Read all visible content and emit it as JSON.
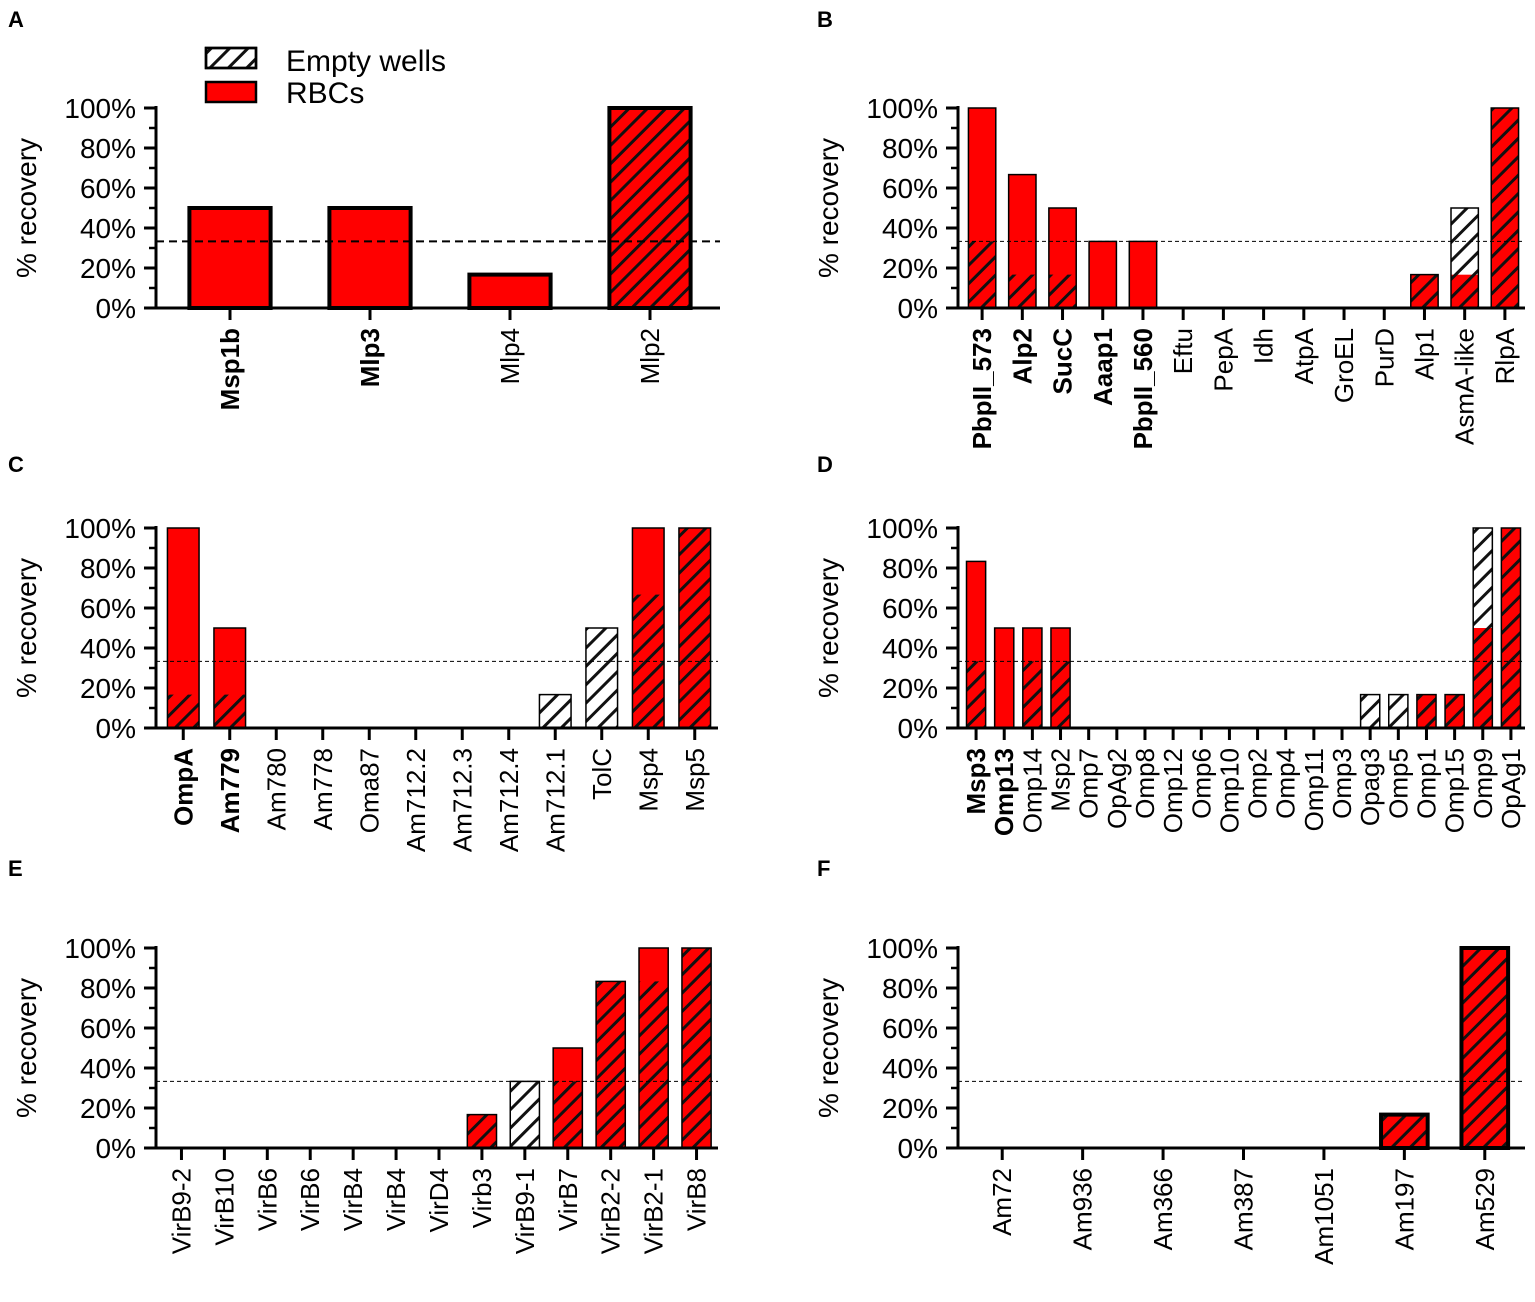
{
  "legend": {
    "empty_wells": "Empty wells",
    "rbcs": "RBCs"
  },
  "colors": {
    "rbc_fill": "#ff0000",
    "hatch_line": "#111111",
    "empty_fill": "#ffffff",
    "axis": "#000000",
    "threshold": "#000000"
  },
  "chart_data": [
    {
      "panel": "A",
      "type": "bar",
      "title": "",
      "xlabel": "",
      "ylabel": "% recovery",
      "ylim": [
        0,
        100
      ],
      "yticks": [
        "0%",
        "20%",
        "40%",
        "60%",
        "80%",
        "100%"
      ],
      "threshold": 33.3,
      "categories": [
        "Msp1b",
        "Mlp3",
        "Mlp4",
        "Mlp2"
      ],
      "bold_categories": [
        "Msp1b",
        "Mlp3"
      ],
      "series": [
        {
          "name": "RBCs",
          "values": [
            50,
            50,
            16.7,
            100
          ]
        },
        {
          "name": "Empty wells",
          "values": [
            0,
            0,
            0,
            100
          ]
        }
      ]
    },
    {
      "panel": "B",
      "type": "bar",
      "title": "",
      "xlabel": "",
      "ylabel": "% recovery",
      "ylim": [
        0,
        100
      ],
      "yticks": [
        "0%",
        "20%",
        "40%",
        "60%",
        "80%",
        "100%"
      ],
      "threshold": 33.3,
      "categories": [
        "PbpII_573",
        "Alp2",
        "SucC",
        "Aaap1",
        "PbpII_560",
        "Eftu",
        "PepA",
        "Idh",
        "AtpA",
        "GroEL",
        "PurD",
        "Alp1",
        "AsmA-like",
        "RlpA"
      ],
      "bold_categories": [
        "PbpII_573",
        "Alp2",
        "SucC",
        "Aaap1",
        "PbpII_560"
      ],
      "series": [
        {
          "name": "RBCs",
          "values": [
            100,
            66.7,
            50,
            33.3,
            33.3,
            0,
            0,
            0,
            0,
            0,
            0,
            16.7,
            16.7,
            100
          ]
        },
        {
          "name": "Empty wells",
          "values": [
            33.3,
            16.7,
            16.7,
            0,
            0,
            0,
            0,
            0,
            0,
            0,
            0,
            16.7,
            50,
            100
          ]
        }
      ]
    },
    {
      "panel": "C",
      "type": "bar",
      "title": "",
      "xlabel": "",
      "ylabel": "% recovery",
      "ylim": [
        0,
        100
      ],
      "yticks": [
        "0%",
        "20%",
        "40%",
        "60%",
        "80%",
        "100%"
      ],
      "threshold": 33.3,
      "categories": [
        "OmpA",
        "Am779",
        "Am780",
        "Am778",
        "Oma87",
        "Am712.2",
        "Am712.3",
        "Am712.4",
        "Am712.1",
        "TolC",
        "Msp4",
        "Msp5"
      ],
      "bold_categories": [
        "OmpA",
        "Am779"
      ],
      "series": [
        {
          "name": "RBCs",
          "values": [
            100,
            50,
            0,
            0,
            0,
            0,
            0,
            0,
            0,
            0,
            100,
            100
          ]
        },
        {
          "name": "Empty wells",
          "values": [
            16.7,
            16.7,
            0,
            0,
            0,
            0,
            0,
            0,
            16.7,
            50,
            66.7,
            100
          ]
        }
      ]
    },
    {
      "panel": "D",
      "type": "bar",
      "title": "",
      "xlabel": "",
      "ylabel": "% recovery",
      "ylim": [
        0,
        100
      ],
      "yticks": [
        "0%",
        "20%",
        "40%",
        "60%",
        "80%",
        "100%"
      ],
      "threshold": 33.3,
      "categories": [
        "Msp3",
        "Omp13",
        "Omp14",
        "Msp2",
        "Omp7",
        "OpAg2",
        "Omp8",
        "Omp12",
        "Omp6",
        "Omp10",
        "Omp2",
        "Omp4",
        "Omp11",
        "Omp3",
        "Opag3",
        "Omp5",
        "Omp1",
        "Omp15",
        "Omp9",
        "OpAg1"
      ],
      "bold_categories": [
        "Msp3",
        "Omp13"
      ],
      "series": [
        {
          "name": "RBCs",
          "values": [
            83.3,
            50,
            50,
            50,
            0,
            0,
            0,
            0,
            0,
            0,
            0,
            0,
            0,
            0,
            0,
            0,
            16.7,
            16.7,
            50,
            100
          ]
        },
        {
          "name": "Empty wells",
          "values": [
            33.3,
            0,
            33.3,
            33.3,
            0,
            0,
            0,
            0,
            0,
            0,
            0,
            0,
            0,
            0,
            16.7,
            16.7,
            16.7,
            16.7,
            100,
            100
          ]
        }
      ]
    },
    {
      "panel": "E",
      "type": "bar",
      "title": "",
      "xlabel": "",
      "ylabel": "% recovery",
      "ylim": [
        0,
        100
      ],
      "yticks": [
        "0%",
        "20%",
        "40%",
        "60%",
        "80%",
        "100%"
      ],
      "threshold": 33.3,
      "categories": [
        "VirB9-2",
        "VirB10",
        "VirB6",
        "VirB6",
        "VirB4",
        "VirB4",
        "VirD4",
        "Virb3",
        "VirB9-1",
        "VirB7",
        "VirB2-2",
        "VirB2-1",
        "VirB8"
      ],
      "bold_categories": [],
      "series": [
        {
          "name": "RBCs",
          "values": [
            0,
            0,
            0,
            0,
            0,
            0,
            0,
            16.7,
            0,
            50,
            83.3,
            100,
            100
          ]
        },
        {
          "name": "Empty wells",
          "values": [
            0,
            0,
            0,
            0,
            0,
            0,
            0,
            16.7,
            33.3,
            33.3,
            83.3,
            83.3,
            100
          ]
        }
      ]
    },
    {
      "panel": "F",
      "type": "bar",
      "title": "",
      "xlabel": "",
      "ylabel": "% recovery",
      "ylim": [
        0,
        100
      ],
      "yticks": [
        "0%",
        "20%",
        "40%",
        "60%",
        "80%",
        "100%"
      ],
      "threshold": 33.3,
      "categories": [
        "Am72",
        "Am936",
        "Am366",
        "Am387",
        "Am1051",
        "Am197",
        "Am529"
      ],
      "bold_categories": [],
      "series": [
        {
          "name": "RBCs",
          "values": [
            0,
            0,
            0,
            0,
            0,
            16.7,
            100
          ]
        },
        {
          "name": "Empty wells",
          "values": [
            0,
            0,
            0,
            0,
            0,
            16.7,
            100
          ]
        }
      ]
    }
  ]
}
